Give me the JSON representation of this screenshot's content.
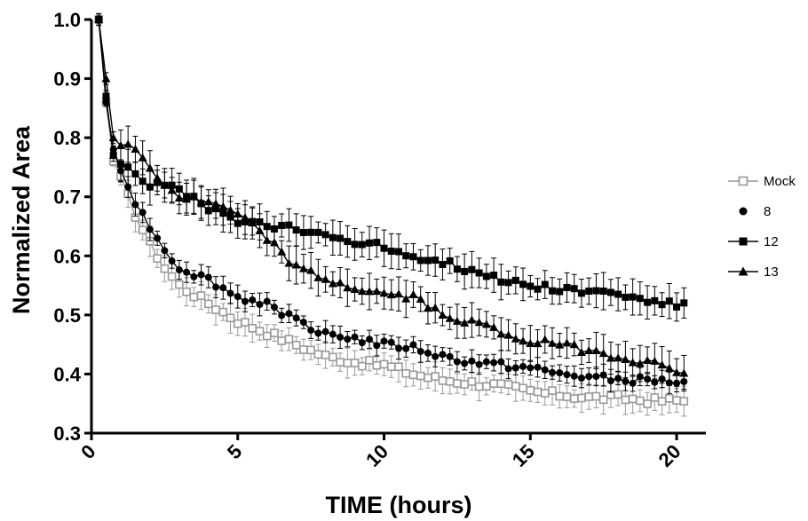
{
  "chart_data": {
    "type": "line",
    "title": "",
    "xlabel": "TIME (hours)",
    "ylabel": "Normalized Area",
    "xlim": [
      0,
      21
    ],
    "ylim": [
      0.3,
      1.0
    ],
    "xticks": [
      0,
      5,
      10,
      15,
      20
    ],
    "yticks": [
      0.3,
      0.4,
      0.5,
      0.6,
      0.7,
      0.8,
      0.9,
      1.0
    ],
    "xtick_labels": [
      "0",
      "5",
      "10",
      "15",
      "20"
    ],
    "ytick_labels": [
      "0.3",
      "0.4",
      "0.5",
      "0.6",
      "0.7",
      "0.8",
      "0.9",
      "1.0"
    ],
    "grid": false,
    "legend_position": "right",
    "sampling_interval_hours": 0.25,
    "series": [
      {
        "name": "Mock",
        "color": "#999999",
        "marker": "open-square",
        "knots": [
          [
            0.25,
            1.0
          ],
          [
            0.5,
            0.86
          ],
          [
            0.75,
            0.76
          ],
          [
            1.0,
            0.73
          ],
          [
            1.5,
            0.67
          ],
          [
            2.0,
            0.62
          ],
          [
            2.5,
            0.58
          ],
          [
            3.0,
            0.55
          ],
          [
            4.0,
            0.52
          ],
          [
            5.0,
            0.49
          ],
          [
            6.0,
            0.47
          ],
          [
            7.0,
            0.45
          ],
          [
            8.0,
            0.43
          ],
          [
            9.0,
            0.42
          ],
          [
            10.0,
            0.415
          ],
          [
            11.0,
            0.4
          ],
          [
            12.0,
            0.39
          ],
          [
            13.0,
            0.385
          ],
          [
            14.0,
            0.38
          ],
          [
            15.0,
            0.37
          ],
          [
            16.0,
            0.365
          ],
          [
            17.0,
            0.36
          ],
          [
            18.0,
            0.36
          ],
          [
            19.0,
            0.355
          ],
          [
            20.25,
            0.355
          ]
        ],
        "error": 0.02
      },
      {
        "name": "8",
        "color": "#000000",
        "marker": "filled-circle",
        "knots": [
          [
            0.25,
            1.0
          ],
          [
            0.5,
            0.86
          ],
          [
            0.75,
            0.78
          ],
          [
            1.0,
            0.75
          ],
          [
            1.5,
            0.69
          ],
          [
            2.0,
            0.65
          ],
          [
            2.5,
            0.61
          ],
          [
            3.0,
            0.58
          ],
          [
            4.0,
            0.56
          ],
          [
            5.0,
            0.53
          ],
          [
            6.0,
            0.52
          ],
          [
            7.0,
            0.49
          ],
          [
            8.0,
            0.47
          ],
          [
            9.0,
            0.46
          ],
          [
            10.0,
            0.45
          ],
          [
            11.0,
            0.445
          ],
          [
            12.0,
            0.43
          ],
          [
            13.0,
            0.42
          ],
          [
            14.0,
            0.415
          ],
          [
            15.0,
            0.41
          ],
          [
            16.0,
            0.4
          ],
          [
            17.0,
            0.395
          ],
          [
            18.0,
            0.39
          ],
          [
            19.0,
            0.39
          ],
          [
            20.25,
            0.385
          ]
        ],
        "error": 0.015
      },
      {
        "name": "12",
        "color": "#000000",
        "marker": "filled-square",
        "knots": [
          [
            0.25,
            1.0
          ],
          [
            0.5,
            0.87
          ],
          [
            0.75,
            0.77
          ],
          [
            1.0,
            0.76
          ],
          [
            1.5,
            0.74
          ],
          [
            2.0,
            0.72
          ],
          [
            2.5,
            0.72
          ],
          [
            3.0,
            0.71
          ],
          [
            4.0,
            0.68
          ],
          [
            5.0,
            0.66
          ],
          [
            6.0,
            0.65
          ],
          [
            7.0,
            0.645
          ],
          [
            8.0,
            0.635
          ],
          [
            9.0,
            0.625
          ],
          [
            10.0,
            0.615
          ],
          [
            11.0,
            0.6
          ],
          [
            12.0,
            0.59
          ],
          [
            13.0,
            0.575
          ],
          [
            14.0,
            0.56
          ],
          [
            15.0,
            0.55
          ],
          [
            16.0,
            0.545
          ],
          [
            17.0,
            0.54
          ],
          [
            18.0,
            0.535
          ],
          [
            19.0,
            0.525
          ],
          [
            20.25,
            0.515
          ]
        ],
        "error": 0.025
      },
      {
        "name": "13",
        "color": "#000000",
        "marker": "filled-triangle",
        "knots": [
          [
            0.25,
            1.0
          ],
          [
            0.5,
            0.9
          ],
          [
            0.75,
            0.8
          ],
          [
            1.0,
            0.79
          ],
          [
            1.5,
            0.78
          ],
          [
            2.0,
            0.75
          ],
          [
            2.5,
            0.72
          ],
          [
            3.0,
            0.7
          ],
          [
            4.0,
            0.69
          ],
          [
            5.0,
            0.67
          ],
          [
            6.0,
            0.63
          ],
          [
            7.0,
            0.58
          ],
          [
            8.0,
            0.56
          ],
          [
            9.0,
            0.545
          ],
          [
            10.0,
            0.535
          ],
          [
            11.0,
            0.53
          ],
          [
            12.0,
            0.5
          ],
          [
            13.0,
            0.49
          ],
          [
            14.0,
            0.47
          ],
          [
            15.0,
            0.455
          ],
          [
            16.0,
            0.45
          ],
          [
            17.0,
            0.44
          ],
          [
            18.0,
            0.43
          ],
          [
            19.0,
            0.42
          ],
          [
            20.25,
            0.405
          ]
        ],
        "error": 0.025
      }
    ]
  }
}
